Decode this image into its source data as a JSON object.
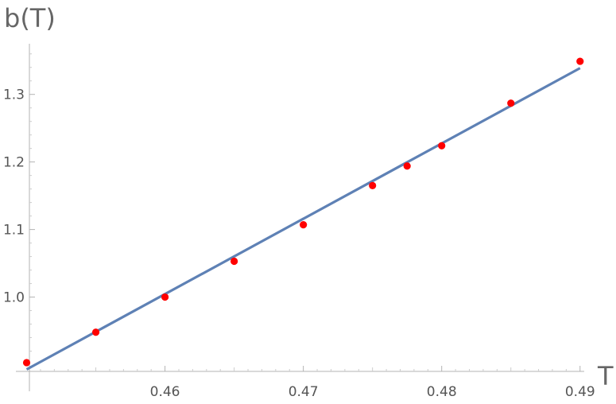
{
  "chart_data": {
    "type": "scatter",
    "xlabel": "T",
    "ylabel": "b(T)",
    "xlim": [
      0.4502,
      0.4903
    ],
    "ylim": [
      0.89,
      1.375
    ],
    "x_ticks": [
      {
        "value": 0.46,
        "label": "0.46"
      },
      {
        "value": 0.47,
        "label": "0.47"
      },
      {
        "value": 0.48,
        "label": "0.48"
      },
      {
        "value": 0.49,
        "label": "0.49"
      }
    ],
    "y_ticks": [
      {
        "value": 1.0,
        "label": "1.0"
      },
      {
        "value": 1.1,
        "label": "1.1"
      },
      {
        "value": 1.2,
        "label": "1.2"
      },
      {
        "value": 1.3,
        "label": "1.3"
      }
    ],
    "series": [
      {
        "kind": "points",
        "color": "#ff0000",
        "points": [
          {
            "x": 0.45,
            "y": 0.903
          },
          {
            "x": 0.455,
            "y": 0.948
          },
          {
            "x": 0.46,
            "y": 1.0
          },
          {
            "x": 0.465,
            "y": 1.053
          },
          {
            "x": 0.47,
            "y": 1.107
          },
          {
            "x": 0.475,
            "y": 1.165
          },
          {
            "x": 0.4775,
            "y": 1.194
          },
          {
            "x": 0.48,
            "y": 1.224
          },
          {
            "x": 0.485,
            "y": 1.287
          },
          {
            "x": 0.49,
            "y": 1.349
          }
        ]
      },
      {
        "kind": "line",
        "color": "#5e81b5",
        "points": [
          {
            "x": 0.45,
            "y": 0.893
          },
          {
            "x": 0.49,
            "y": 1.339
          }
        ]
      }
    ]
  }
}
